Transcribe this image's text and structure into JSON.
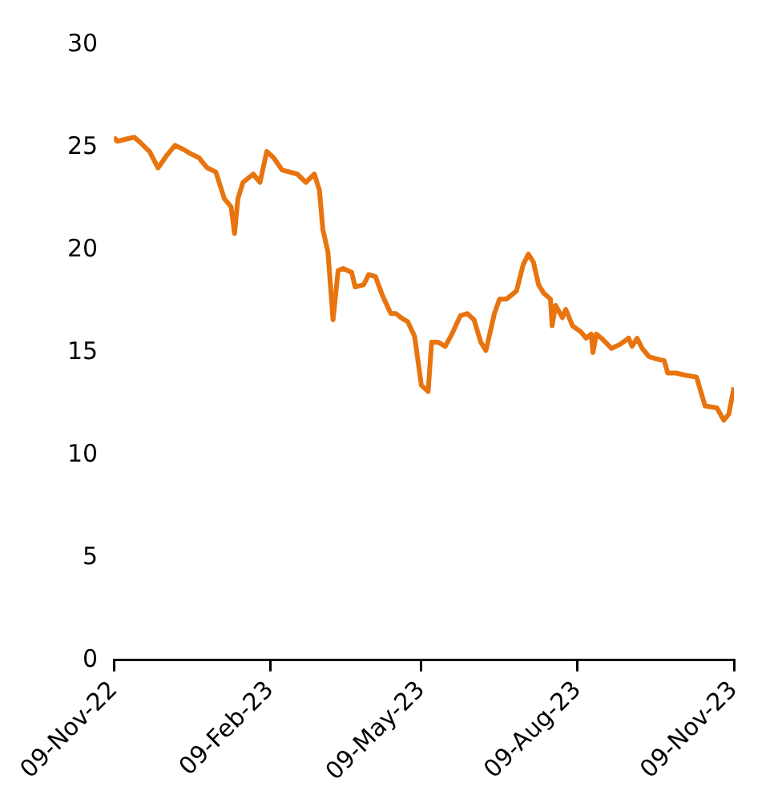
{
  "chart_data": {
    "type": "line",
    "x": [
      "2022-11-09",
      "2022-11-11",
      "2022-11-16",
      "2022-11-21",
      "2022-11-25",
      "2022-11-30",
      "2022-12-05",
      "2022-12-10",
      "2022-12-15",
      "2022-12-20",
      "2022-12-24",
      "2022-12-29",
      "2023-01-03",
      "2023-01-08",
      "2023-01-13",
      "2023-01-17",
      "2023-01-19",
      "2023-01-21",
      "2023-01-24",
      "2023-01-30",
      "2023-02-03",
      "2023-02-07",
      "2023-02-11",
      "2023-02-16",
      "2023-02-25",
      "2023-03-02",
      "2023-03-07",
      "2023-03-10",
      "2023-03-12",
      "2023-03-15",
      "2023-03-18",
      "2023-03-21",
      "2023-03-24",
      "2023-03-29",
      "2023-03-31",
      "2023-04-05",
      "2023-04-08",
      "2023-04-12",
      "2023-04-16",
      "2023-04-21",
      "2023-04-24",
      "2023-04-27",
      "2023-05-01",
      "2023-05-05",
      "2023-05-09",
      "2023-05-13",
      "2023-05-15",
      "2023-05-19",
      "2023-05-23",
      "2023-05-27",
      "2023-06-01",
      "2023-06-05",
      "2023-06-09",
      "2023-06-13",
      "2023-06-16",
      "2023-06-21",
      "2023-06-24",
      "2023-06-28",
      "2023-07-04",
      "2023-07-08",
      "2023-07-11",
      "2023-07-14",
      "2023-07-17",
      "2023-07-20",
      "2023-07-24",
      "2023-07-25",
      "2023-07-27",
      "2023-07-31",
      "2023-08-02",
      "2023-08-06",
      "2023-08-11",
      "2023-08-14",
      "2023-08-17",
      "2023-08-18",
      "2023-08-20",
      "2023-08-23",
      "2023-08-29",
      "2023-09-03",
      "2023-09-08",
      "2023-09-10",
      "2023-09-13",
      "2023-09-16",
      "2023-09-20",
      "2023-09-24",
      "2023-09-29",
      "2023-10-01",
      "2023-10-06",
      "2023-10-11",
      "2023-10-18",
      "2023-10-23",
      "2023-10-30",
      "2023-11-03",
      "2023-11-06",
      "2023-11-09"
    ],
    "series": [
      {
        "color": "#e8740f",
        "values": [
          25.5,
          25.3,
          25.4,
          25.5,
          25.2,
          24.8,
          24.0,
          24.6,
          25.1,
          24.9,
          24.7,
          24.5,
          24.0,
          23.8,
          22.5,
          22.1,
          20.8,
          22.5,
          23.3,
          23.7,
          23.3,
          24.8,
          24.5,
          23.9,
          23.7,
          23.3,
          23.7,
          22.9,
          21.0,
          19.9,
          16.6,
          19.0,
          19.1,
          18.9,
          18.2,
          18.3,
          18.8,
          18.7,
          17.8,
          16.9,
          16.9,
          16.7,
          16.5,
          15.8,
          13.4,
          13.1,
          15.5,
          15.5,
          15.3,
          15.9,
          16.8,
          16.9,
          16.6,
          15.5,
          15.1,
          16.9,
          17.6,
          17.6,
          18.0,
          19.3,
          19.8,
          19.4,
          18.3,
          17.9,
          17.6,
          16.3,
          17.3,
          16.7,
          17.1,
          16.3,
          16.0,
          15.7,
          15.9,
          15.0,
          15.9,
          15.7,
          15.2,
          15.4,
          15.7,
          15.3,
          15.7,
          15.2,
          14.8,
          14.7,
          14.6,
          14.0,
          14.0,
          13.9,
          13.8,
          12.4,
          12.3,
          11.7,
          12.0,
          13.3
        ]
      }
    ],
    "xlim": [
      "2022-11-09",
      "2023-11-09"
    ],
    "xticks": [
      {
        "value": "2022-11-09",
        "label": "09-Nov-22"
      },
      {
        "value": "2023-02-09",
        "label": "09-Feb-23"
      },
      {
        "value": "2023-05-09",
        "label": "09-May-23"
      },
      {
        "value": "2023-08-09",
        "label": "09-Aug-23"
      },
      {
        "value": "2023-11-09",
        "label": "09-Nov-23"
      }
    ],
    "ylim": [
      0,
      30
    ],
    "yticks": [
      0,
      5,
      10,
      15,
      20,
      25,
      30
    ],
    "grid": false,
    "legend": false,
    "marker": "none",
    "line_style": "solid"
  }
}
